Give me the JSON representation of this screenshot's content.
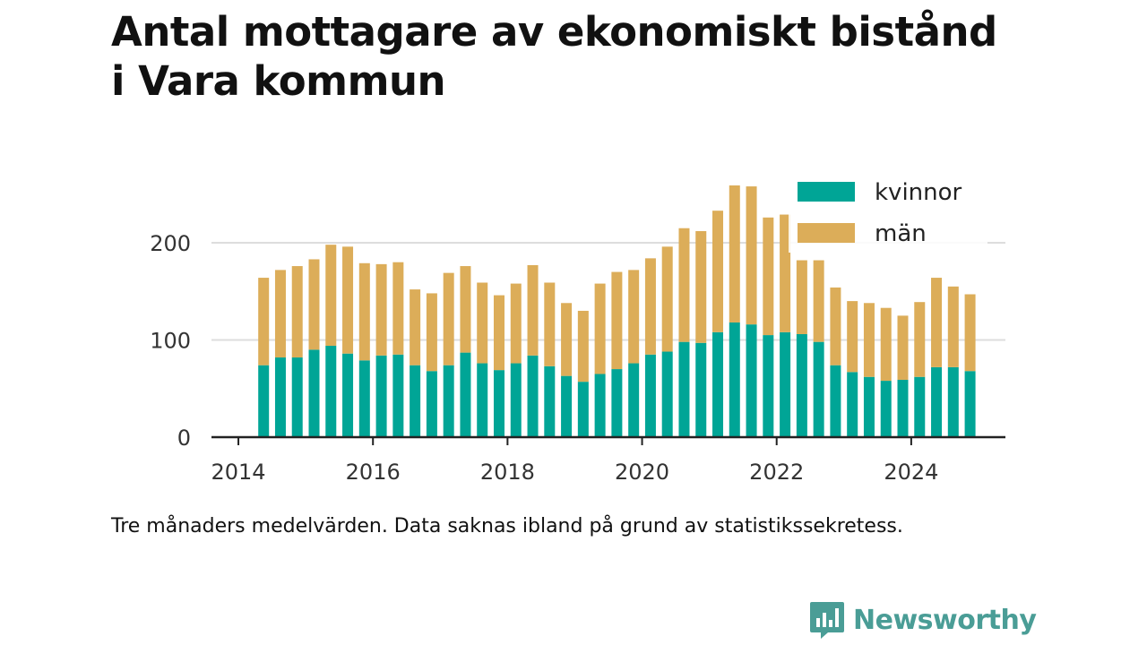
{
  "title_line1": "Antal mottagare av ekonomiskt bistånd",
  "title_line2": "i Vara kommun",
  "note": "Tre månaders medelvärden. Data saknas ibland på grund av statistikssekretess.",
  "brand": {
    "name": "Newsworthy",
    "icon": "bar-chart-speech-bubble-icon",
    "color": "#4a9d96"
  },
  "colors": {
    "kvinnor": "#00a596",
    "man": "#dcad59",
    "axis": "#222222",
    "grid": "#dddddd"
  },
  "chart_data": {
    "type": "bar",
    "stacked": true,
    "title": "Antal mottagare av ekonomiskt bistånd i Vara kommun",
    "xlim": [
      2013.6,
      2025.4
    ],
    "ylim": [
      0,
      260
    ],
    "x_ticks": [
      2014,
      2016,
      2018,
      2020,
      2022,
      2024
    ],
    "y_ticks": [
      0,
      100,
      200
    ],
    "grid": true,
    "legend_position": "top-right",
    "x": [
      2014.375,
      2014.625,
      2014.875,
      2015.125,
      2015.375,
      2015.625,
      2015.875,
      2016.125,
      2016.375,
      2016.625,
      2016.875,
      2017.125,
      2017.375,
      2017.625,
      2017.875,
      2018.125,
      2018.375,
      2018.625,
      2018.875,
      2019.125,
      2019.375,
      2019.625,
      2019.875,
      2020.125,
      2020.375,
      2020.625,
      2020.875,
      2021.125,
      2021.375,
      2021.625,
      2021.875,
      2022.125,
      2022.375,
      2022.625,
      2022.875,
      2023.125,
      2023.375,
      2023.625,
      2023.875,
      2024.125,
      2024.375,
      2024.625,
      2024.875
    ],
    "series": [
      {
        "name": "kvinnor",
        "values": [
          74,
          82,
          82,
          90,
          94,
          86,
          79,
          84,
          85,
          74,
          68,
          74,
          87,
          76,
          69,
          76,
          84,
          73,
          63,
          57,
          65,
          70,
          76,
          85,
          88,
          98,
          97,
          108,
          118,
          116,
          105,
          108,
          106,
          98,
          74,
          67,
          62,
          58,
          59,
          62,
          72,
          72,
          68
        ]
      },
      {
        "name": "män",
        "values": [
          90,
          90,
          94,
          93,
          104,
          110,
          100,
          94,
          95,
          78,
          80,
          95,
          89,
          83,
          77,
          82,
          93,
          86,
          75,
          73,
          93,
          100,
          96,
          99,
          108,
          117,
          115,
          125,
          141,
          142,
          121,
          121,
          76,
          84,
          80,
          73,
          76,
          75,
          66,
          77,
          92,
          83,
          79
        ]
      }
    ]
  }
}
